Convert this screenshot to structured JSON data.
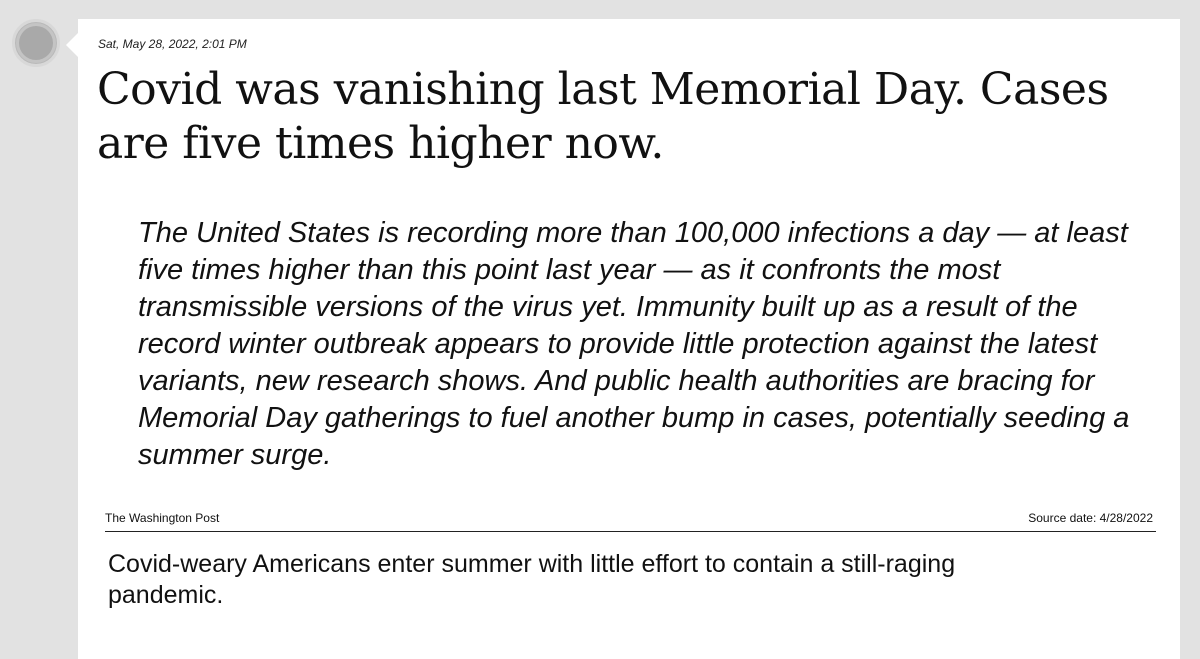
{
  "post": {
    "timestamp": "Sat, May 28, 2022, 2:01 PM",
    "headline": "Covid was vanishing last Memorial Day. Cases are five times higher now.",
    "quote": "The United States is recording more than 100,000 infections a day — at least five times higher than this point last year — as it confronts the most transmissible versions of the virus yet. Immunity built up as a result of the record winter outbreak appears to provide little protection against the latest variants, new research shows. And public health authorities are bracing for Memorial Day gatherings to fuel another bump in cases, potentially seeding a summer surge.",
    "source_name": "The Washington Post",
    "source_date": "Source date: 4/28/2022",
    "article_title": "Covid-weary Americans enter summer with little effort to contain a still-raging pandemic."
  }
}
